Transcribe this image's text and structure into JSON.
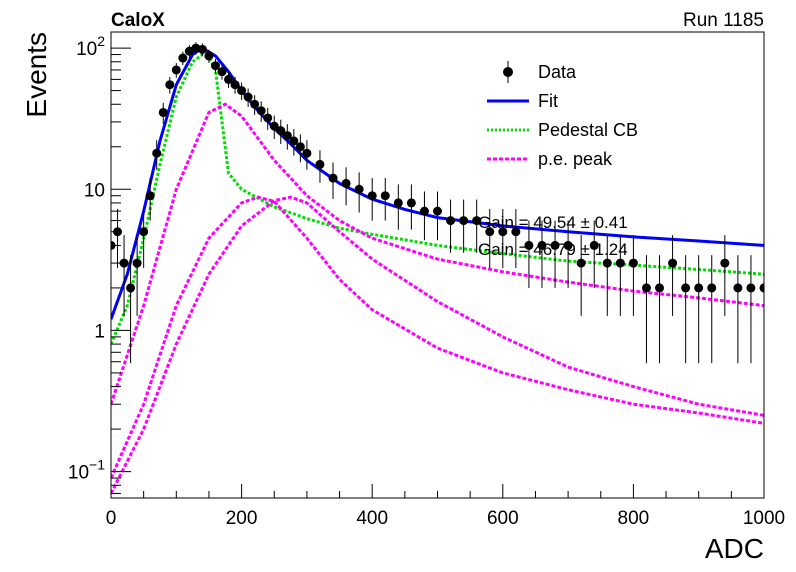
{
  "header": {
    "experiment": "CaloX",
    "run": "Run 1185"
  },
  "chart_data": {
    "type": "scatter",
    "title": "",
    "xlabel": "ADC",
    "ylabel": "Events",
    "xlim": [
      0,
      1000
    ],
    "ylim": [
      0.065,
      130
    ],
    "yscale": "log",
    "grid": false,
    "legend_position": "top-right",
    "x_ticks": [
      0,
      200,
      400,
      600,
      800,
      1000
    ],
    "y_ticks": [
      {
        "value": 0.1,
        "base": "10",
        "exp": "−1"
      },
      {
        "value": 1,
        "text": "1"
      },
      {
        "value": 10,
        "text": "10"
      },
      {
        "value": 100,
        "base": "10",
        "exp": "2"
      }
    ],
    "legend": [
      {
        "label": "Data",
        "style": "marker",
        "color": "#000000"
      },
      {
        "label": "Fit",
        "style": "line",
        "color": "#0000ff"
      },
      {
        "label": "Pedestal CB",
        "style": "dotted",
        "color": "#00dd00"
      },
      {
        "label": "p.e. peak",
        "style": "dashed",
        "color": "#ff00ff"
      }
    ],
    "annotations": [
      "Gain = 49.54 ± 0.41",
      "Gain = 46.79 ± 1.24"
    ],
    "series": [
      {
        "name": "Data",
        "kind": "points",
        "color": "#000000",
        "x": [
          0,
          10,
          20,
          30,
          40,
          50,
          60,
          70,
          80,
          90,
          100,
          110,
          120,
          130,
          140,
          150,
          160,
          170,
          180,
          190,
          200,
          210,
          220,
          230,
          240,
          250,
          260,
          270,
          280,
          290,
          300,
          320,
          340,
          360,
          380,
          400,
          420,
          440,
          460,
          480,
          500,
          520,
          540,
          560,
          580,
          600,
          620,
          640,
          660,
          680,
          700,
          720,
          740,
          760,
          780,
          800,
          820,
          840,
          860,
          880,
          900,
          920,
          940,
          960,
          980,
          1000
        ],
        "y": [
          4,
          5,
          3,
          2,
          3,
          5,
          9,
          18,
          35,
          55,
          70,
          85,
          95,
          100,
          98,
          88,
          75,
          68,
          60,
          55,
          50,
          45,
          40,
          36,
          32,
          28,
          26,
          24,
          22,
          20,
          18,
          15,
          12,
          11,
          10,
          9,
          9,
          8,
          8,
          7,
          7,
          6,
          6,
          6,
          5,
          5,
          5,
          4,
          4,
          4,
          4,
          3,
          4,
          3,
          3,
          3,
          2,
          2,
          3,
          2,
          2,
          2,
          3,
          2,
          2,
          2
        ]
      },
      {
        "name": "Fit",
        "kind": "line",
        "color": "#0000ff",
        "x": [
          0,
          25,
          50,
          75,
          100,
          125,
          140,
          160,
          180,
          200,
          225,
          250,
          275,
          300,
          350,
          400,
          450,
          500,
          600,
          700,
          800,
          900,
          1000
        ],
        "y": [
          1.2,
          2.5,
          7,
          22,
          55,
          90,
          100,
          88,
          68,
          50,
          36,
          27,
          21,
          16,
          11,
          8.5,
          7.2,
          6.3,
          5.5,
          5.0,
          4.6,
          4.3,
          4.0
        ]
      },
      {
        "name": "Pedestal CB",
        "kind": "line",
        "color": "#00dd00",
        "x": [
          0,
          25,
          50,
          75,
          100,
          125,
          140,
          150,
          160,
          170,
          180,
          200,
          250,
          300,
          350,
          400,
          500,
          600,
          700,
          800,
          900,
          1000
        ],
        "y": [
          0.8,
          1.5,
          4.5,
          15,
          45,
          80,
          90,
          85,
          70,
          30,
          13,
          10,
          7.5,
          6.2,
          5.3,
          4.8,
          4.0,
          3.5,
          3.1,
          2.9,
          2.7,
          2.5
        ]
      },
      {
        "name": "p.e. peak",
        "kind": "line",
        "color": "#ff00ff",
        "x": [
          0,
          50,
          100,
          150,
          175,
          200,
          250,
          300,
          350,
          400,
          500,
          600,
          700,
          800,
          900,
          1000
        ],
        "y": [
          0.3,
          1.5,
          10,
          35,
          40,
          33,
          16,
          9,
          6,
          4.5,
          3.2,
          2.6,
          2.2,
          1.9,
          1.7,
          1.5
        ]
      },
      {
        "name": "p.e. peak",
        "kind": "line",
        "color": "#ff00ff",
        "x": [
          0,
          50,
          100,
          150,
          200,
          225,
          250,
          300,
          350,
          400,
          500,
          600,
          700,
          800,
          900,
          1000
        ],
        "y": [
          0.09,
          0.3,
          1.5,
          4.5,
          8,
          8.8,
          8.2,
          4.5,
          2.3,
          1.4,
          0.75,
          0.5,
          0.38,
          0.3,
          0.26,
          0.22
        ]
      },
      {
        "name": "p.e. peak",
        "kind": "line",
        "color": "#ff00ff",
        "x": [
          0,
          50,
          100,
          150,
          200,
          250,
          275,
          300,
          350,
          400,
          500,
          600,
          700,
          800,
          900,
          1000
        ],
        "y": [
          0.07,
          0.2,
          0.8,
          2.5,
          5.5,
          8.3,
          8.8,
          8,
          5,
          3.2,
          1.6,
          0.9,
          0.55,
          0.4,
          0.3,
          0.25
        ]
      }
    ]
  }
}
